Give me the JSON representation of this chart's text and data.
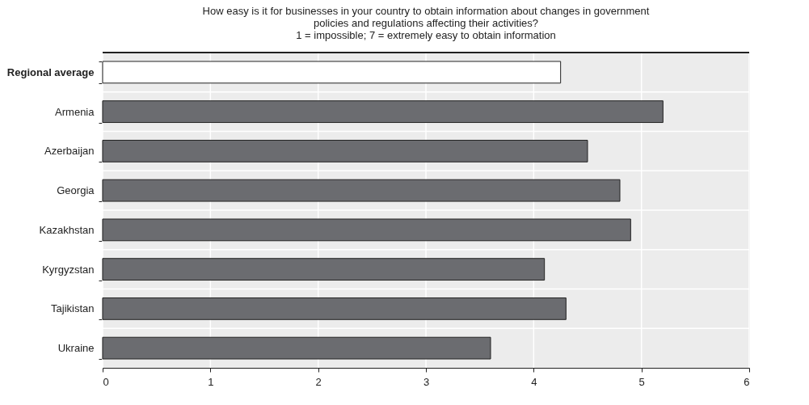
{
  "chart_data": {
    "type": "bar",
    "orientation": "horizontal",
    "title": "How easy is it for businesses in your country to obtain information about changes in government policies and regulations affecting their activities?",
    "subtitle": "1 = impossible; 7 = extremely easy to obtain information",
    "categories": [
      "Regional average",
      "Armenia",
      "Azerbaijan",
      "Georgia",
      "Kazakhstan",
      "Kyrgyzstan",
      "Tajikistan",
      "Ukraine"
    ],
    "values": [
      4.25,
      5.2,
      4.5,
      4.8,
      4.9,
      4.1,
      4.3,
      3.6
    ],
    "colors": [
      "#ffffff",
      "#6b6c70",
      "#6b6c70",
      "#6b6c70",
      "#6b6c70",
      "#6b6c70",
      "#6b6c70",
      "#6b6c70"
    ],
    "xlim": [
      0,
      6
    ],
    "xticks": [
      0,
      1,
      2,
      3,
      4,
      5,
      6
    ],
    "grid": true
  }
}
